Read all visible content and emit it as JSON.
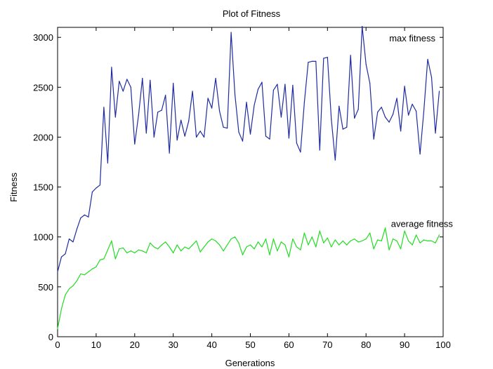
{
  "chart_data": {
    "type": "line",
    "title": "Plot of Fitness",
    "xlabel": "Generations",
    "ylabel": "Fitness",
    "xlim": [
      0,
      100
    ],
    "ylim": [
      0,
      3100
    ],
    "xticks": [
      0,
      10,
      20,
      30,
      40,
      50,
      60,
      70,
      80,
      90,
      100
    ],
    "yticks": [
      0,
      500,
      1000,
      1500,
      2000,
      2500,
      3000
    ],
    "grid": false,
    "series": [
      {
        "name": "max fitness",
        "color": "#1f2ca0",
        "x": [
          0,
          1,
          2,
          3,
          4,
          5,
          6,
          7,
          8,
          9,
          10,
          11,
          12,
          13,
          14,
          15,
          16,
          17,
          18,
          19,
          20,
          21,
          22,
          23,
          24,
          25,
          26,
          27,
          28,
          29,
          30,
          31,
          32,
          33,
          34,
          35,
          36,
          37,
          38,
          39,
          40,
          41,
          42,
          43,
          44,
          45,
          46,
          47,
          48,
          49,
          50,
          51,
          52,
          53,
          54,
          55,
          56,
          57,
          58,
          59,
          60,
          61,
          62,
          63,
          64,
          65,
          66,
          67,
          68,
          69,
          70,
          71,
          72,
          73,
          74,
          75,
          76,
          77,
          78,
          79,
          80,
          81,
          82,
          83,
          84,
          85,
          86,
          87,
          88,
          89,
          90,
          91,
          92,
          93,
          94,
          95,
          96,
          97,
          98,
          99
        ],
        "values": [
          650,
          800,
          830,
          980,
          950,
          1080,
          1190,
          1220,
          1200,
          1450,
          1490,
          1520,
          2300,
          1740,
          2700,
          2200,
          2560,
          2460,
          2580,
          2500,
          1930,
          2220,
          2590,
          2040,
          2570,
          2000,
          2250,
          2270,
          2420,
          1840,
          2540,
          1970,
          2170,
          2010,
          2160,
          2460,
          2000,
          2060,
          2000,
          2390,
          2290,
          2590,
          2260,
          2100,
          2090,
          3050,
          2430,
          2050,
          1960,
          2350,
          2030,
          2320,
          2480,
          2550,
          2010,
          1980,
          2470,
          2530,
          2200,
          2530,
          1990,
          2520,
          1940,
          1850,
          2350,
          2750,
          2760,
          2760,
          1870,
          2790,
          2800,
          2180,
          1770,
          2310,
          2080,
          2100,
          2820,
          2190,
          2280,
          3110,
          2730,
          2540,
          1980,
          2250,
          2300,
          2200,
          2150,
          2230,
          2390,
          2060,
          2510,
          2220,
          2330,
          2260,
          1830,
          2260,
          2780,
          2600,
          2040,
          2460
        ]
      },
      {
        "name": "average fitness",
        "color": "#22dd22",
        "x": [
          0,
          1,
          2,
          3,
          4,
          5,
          6,
          7,
          8,
          9,
          10,
          11,
          12,
          13,
          14,
          15,
          16,
          17,
          18,
          19,
          20,
          21,
          22,
          23,
          24,
          25,
          26,
          27,
          28,
          29,
          30,
          31,
          32,
          33,
          34,
          35,
          36,
          37,
          38,
          39,
          40,
          41,
          42,
          43,
          44,
          45,
          46,
          47,
          48,
          49,
          50,
          51,
          52,
          53,
          54,
          55,
          56,
          57,
          58,
          59,
          60,
          61,
          62,
          63,
          64,
          65,
          66,
          67,
          68,
          69,
          70,
          71,
          72,
          73,
          74,
          75,
          76,
          77,
          78,
          79,
          80,
          81,
          82,
          83,
          84,
          85,
          86,
          87,
          88,
          89,
          90,
          91,
          92,
          93,
          94,
          95,
          96,
          97,
          98,
          99
        ],
        "values": [
          80,
          280,
          420,
          480,
          510,
          560,
          630,
          620,
          650,
          680,
          700,
          770,
          780,
          870,
          960,
          780,
          880,
          890,
          840,
          860,
          840,
          870,
          860,
          840,
          940,
          900,
          880,
          920,
          950,
          900,
          840,
          920,
          860,
          900,
          880,
          920,
          960,
          850,
          900,
          950,
          980,
          960,
          920,
          860,
          920,
          980,
          1000,
          940,
          820,
          900,
          920,
          880,
          950,
          900,
          980,
          820,
          980,
          860,
          950,
          920,
          800,
          980,
          900,
          870,
          1040,
          920,
          1000,
          900,
          1060,
          940,
          990,
          900,
          970,
          920,
          960,
          920,
          960,
          980,
          950,
          960,
          980,
          1040,
          880,
          970,
          960,
          1090,
          870,
          980,
          960,
          880,
          1060,
          960,
          920,
          1020,
          940,
          970,
          960,
          960,
          940,
          1020
        ]
      }
    ],
    "annotations": [
      {
        "text": "max fitness",
        "x": 92,
        "y": 2960
      },
      {
        "text": "average fitness",
        "x": 94.5,
        "y": 1100
      }
    ]
  }
}
